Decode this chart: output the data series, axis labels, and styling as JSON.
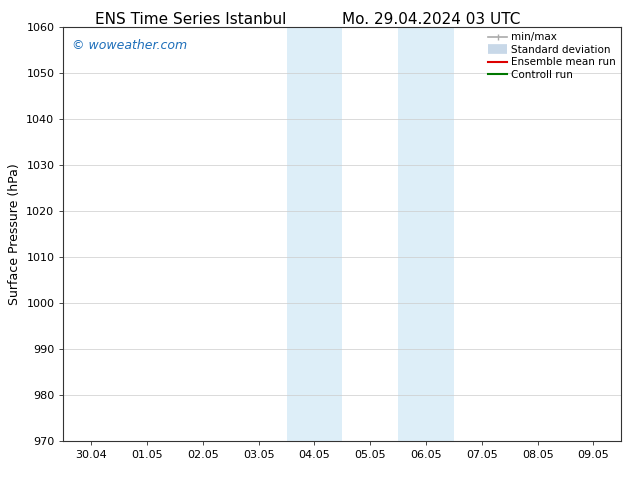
{
  "title_left": "ENS Time Series Istanbul",
  "title_right": "Mo. 29.04.2024 03 UTC",
  "ylabel": "Surface Pressure (hPa)",
  "ylim": [
    970,
    1060
  ],
  "yticks": [
    970,
    980,
    990,
    1000,
    1010,
    1020,
    1030,
    1040,
    1050,
    1060
  ],
  "xtick_labels": [
    "30.04",
    "01.05",
    "02.05",
    "03.05",
    "04.05",
    "05.05",
    "06.05",
    "07.05",
    "08.05",
    "09.05"
  ],
  "xtick_count": 10,
  "shaded_bands": [
    {
      "xstart": 3.5,
      "xend": 4.5
    },
    {
      "xstart": 5.5,
      "xend": 6.5
    }
  ],
  "shaded_color": "#ddeef8",
  "watermark_text": "© woweather.com",
  "watermark_color": "#1e6fba",
  "background_color": "#ffffff",
  "plot_bg_color": "#ffffff",
  "grid_color": "#cccccc",
  "legend_items": [
    {
      "label": "min/max",
      "color": "#aaaaaa",
      "lw": 1.2,
      "style": "minmax"
    },
    {
      "label": "Standard deviation",
      "color": "#c8d8e8",
      "lw": 7,
      "style": "std"
    },
    {
      "label": "Ensemble mean run",
      "color": "#dd0000",
      "lw": 1.5,
      "style": "line"
    },
    {
      "label": "Controll run",
      "color": "#007700",
      "lw": 1.5,
      "style": "line"
    }
  ],
  "title_fontsize": 11,
  "ylabel_fontsize": 9,
  "tick_fontsize": 8,
  "legend_fontsize": 7.5,
  "watermark_fontsize": 9
}
